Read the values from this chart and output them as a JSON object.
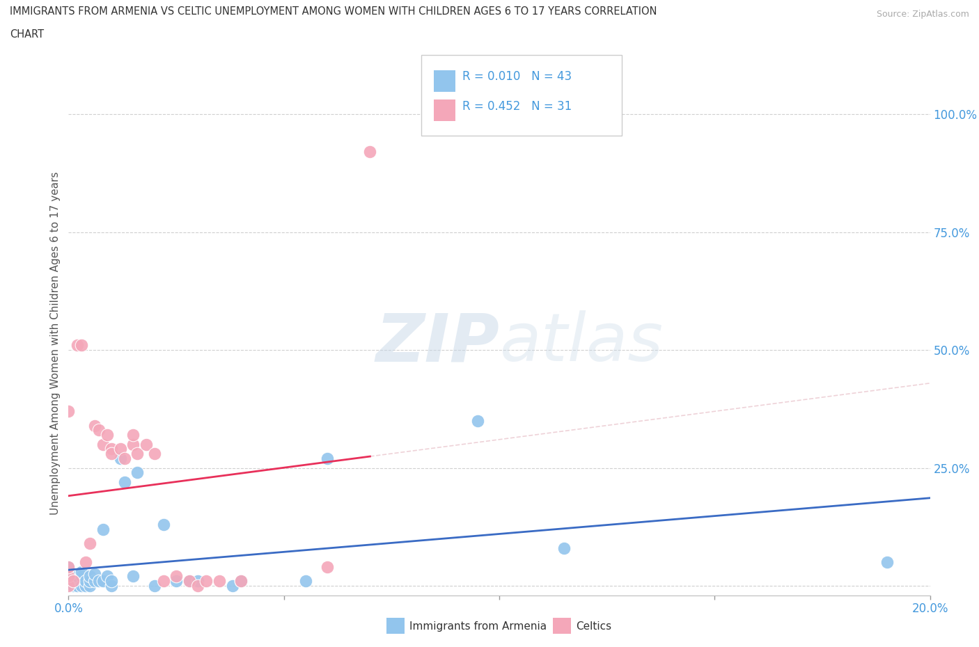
{
  "title_line1": "IMMIGRANTS FROM ARMENIA VS CELTIC UNEMPLOYMENT AMONG WOMEN WITH CHILDREN AGES 6 TO 17 YEARS CORRELATION",
  "title_line2": "CHART",
  "source": "Source: ZipAtlas.com",
  "ylabel": "Unemployment Among Women with Children Ages 6 to 17 years",
  "xlabel_blue": "Immigrants from Armenia",
  "xlabel_pink": "Celtics",
  "xlim": [
    0.0,
    0.2
  ],
  "ylim": [
    -0.02,
    1.05
  ],
  "R_blue": 0.01,
  "N_blue": 43,
  "R_pink": 0.452,
  "N_pink": 31,
  "color_blue": "#92C5ED",
  "color_pink": "#F4A7B9",
  "line_blue": "#3A6BC4",
  "line_pink": "#E8305A",
  "line_diag": "#E8C0C8",
  "watermark_zip": "ZIP",
  "watermark_atlas": "atlas",
  "tick_color": "#4499DD",
  "blue_x": [
    0.0,
    0.0,
    0.0,
    0.0,
    0.0,
    0.0,
    0.001,
    0.001,
    0.002,
    0.002,
    0.002,
    0.003,
    0.003,
    0.003,
    0.004,
    0.004,
    0.005,
    0.005,
    0.005,
    0.006,
    0.006,
    0.007,
    0.008,
    0.008,
    0.009,
    0.01,
    0.01,
    0.012,
    0.013,
    0.015,
    0.016,
    0.02,
    0.022,
    0.025,
    0.028,
    0.03,
    0.038,
    0.04,
    0.055,
    0.06,
    0.095,
    0.115,
    0.19
  ],
  "blue_y": [
    0.0,
    0.005,
    0.01,
    0.02,
    0.03,
    0.04,
    0.0,
    0.01,
    0.0,
    0.01,
    0.02,
    0.0,
    0.02,
    0.03,
    0.0,
    0.01,
    0.0,
    0.01,
    0.02,
    0.01,
    0.025,
    0.01,
    0.01,
    0.12,
    0.02,
    0.0,
    0.01,
    0.27,
    0.22,
    0.02,
    0.24,
    0.0,
    0.13,
    0.01,
    0.01,
    0.01,
    0.0,
    0.01,
    0.01,
    0.27,
    0.35,
    0.08,
    0.05
  ],
  "pink_x": [
    0.0,
    0.0,
    0.0,
    0.0,
    0.001,
    0.002,
    0.003,
    0.004,
    0.005,
    0.006,
    0.007,
    0.008,
    0.009,
    0.01,
    0.01,
    0.012,
    0.013,
    0.015,
    0.015,
    0.016,
    0.018,
    0.02,
    0.022,
    0.025,
    0.028,
    0.03,
    0.032,
    0.035,
    0.04,
    0.06,
    0.07
  ],
  "pink_y": [
    0.0,
    0.02,
    0.04,
    0.37,
    0.01,
    0.51,
    0.51,
    0.05,
    0.09,
    0.34,
    0.33,
    0.3,
    0.32,
    0.29,
    0.28,
    0.29,
    0.27,
    0.3,
    0.32,
    0.28,
    0.3,
    0.28,
    0.01,
    0.02,
    0.01,
    0.0,
    0.01,
    0.01,
    0.01,
    0.04,
    0.92
  ]
}
